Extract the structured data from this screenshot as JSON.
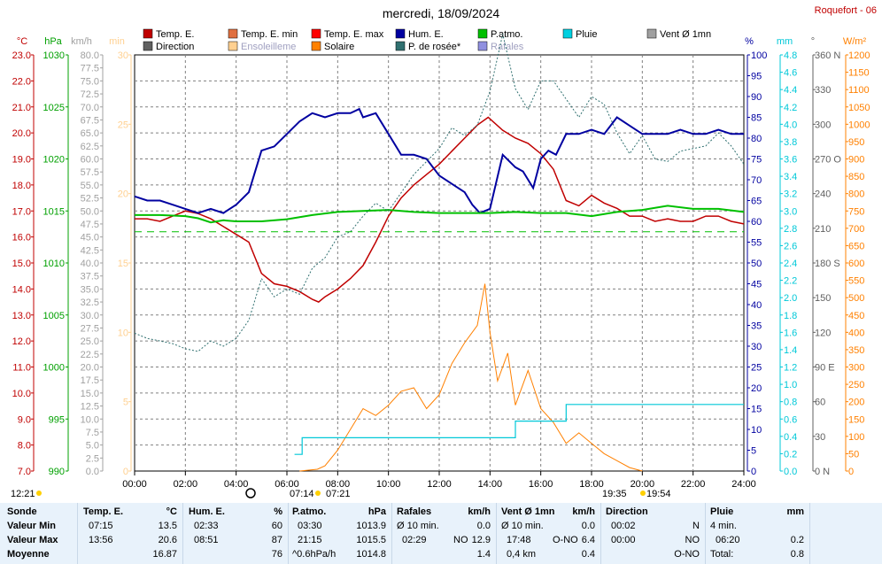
{
  "title": "mercredi, 18/09/2024",
  "station": "Roquefort - 06",
  "legend": [
    {
      "label": "Temp. E.",
      "color": "#c00000"
    },
    {
      "label": "Temp. E. min",
      "color": "#e07040"
    },
    {
      "label": "Temp. E. max",
      "color": "#ff0000"
    },
    {
      "label": "Hum. E.",
      "color": "#0000a0"
    },
    {
      "label": "P.atmo.",
      "color": "#00c000"
    },
    {
      "label": "Pluie",
      "color": "#00d0e0"
    },
    {
      "label": "Vent Ø 1mn",
      "color": "#a0a0a0"
    },
    {
      "label": "Direction",
      "color": "#606060"
    },
    {
      "label": "Ensoleilleme",
      "color": "#ffd090"
    },
    {
      "label": "Solaire",
      "color": "#ff8000"
    },
    {
      "label": "P. de rosée*",
      "color": "#307070"
    },
    {
      "label": "Rafales",
      "color": "#9090e0"
    }
  ],
  "axes": {
    "temp": {
      "unit": "°C",
      "color": "#c00000",
      "ticks": [
        "23.0",
        "22.0",
        "21.0",
        "20.0",
        "19.0",
        "18.0",
        "17.0",
        "16.0",
        "15.0",
        "14.0",
        "13.0",
        "12.0",
        "11.0",
        "10.0",
        "9.0",
        "8.0",
        "7.0"
      ]
    },
    "pressure": {
      "unit": "hPa",
      "color": "#00a000",
      "ticks": [
        "1030",
        "1025",
        "1020",
        "1015",
        "1010",
        "1005",
        "1000",
        "995",
        "990"
      ]
    },
    "wind": {
      "unit": "km/h",
      "color": "#a0a0a0",
      "ticks": [
        "80.0",
        "77.5",
        "75.0",
        "72.5",
        "70.0",
        "67.5",
        "65.0",
        "62.5",
        "60.0",
        "57.5",
        "55.0",
        "52.5",
        "50.0",
        "47.5",
        "45.0",
        "42.5",
        "40.0",
        "37.5",
        "35.0",
        "32.5",
        "30.0",
        "27.5",
        "25.0",
        "22.5",
        "20.0",
        "17.5",
        "15.0",
        "12.5",
        "10.0",
        "7.5",
        "5.0",
        "2.5",
        "0.0"
      ]
    },
    "min": {
      "unit": "min",
      "color": "#ffd090",
      "ticks": [
        "30",
        "25",
        "20",
        "15",
        "10",
        "5",
        "0"
      ]
    },
    "humidity": {
      "unit": "%",
      "color": "#0000a0",
      "ticks": [
        "100",
        "95",
        "90",
        "85",
        "80",
        "75",
        "70",
        "65",
        "60",
        "55",
        "50",
        "45",
        "40",
        "35",
        "30",
        "25",
        "20",
        "15",
        "10",
        "5",
        "0"
      ]
    },
    "rain": {
      "unit": "mm",
      "color": "#00c8d8",
      "ticks": [
        "4.8",
        "4.6",
        "4.4",
        "4.2",
        "4.0",
        "3.8",
        "3.6",
        "3.4",
        "3.2",
        "3.0",
        "2.8",
        "2.6",
        "2.4",
        "2.2",
        "2.0",
        "1.8",
        "1.6",
        "1.4",
        "1.2",
        "1.0",
        "0.8",
        "0.6",
        "0.4",
        "0.2",
        "0.0"
      ]
    },
    "direction": {
      "unit": "°",
      "color": "#606060",
      "ticks": [
        "360 N",
        "330",
        "300",
        "270 O",
        "240",
        "210",
        "180 S",
        "150",
        "120",
        "90 E",
        "60",
        "30",
        "0 N"
      ]
    },
    "solar": {
      "unit": "W/m²",
      "color": "#ff8000",
      "ticks": [
        "1200",
        "1150",
        "1100",
        "1050",
        "1000",
        "950",
        "900",
        "850",
        "800",
        "750",
        "700",
        "650",
        "600",
        "550",
        "500",
        "450",
        "400",
        "350",
        "300",
        "250",
        "200",
        "150",
        "100",
        "50",
        "0"
      ]
    }
  },
  "x_ticks": [
    "00:00",
    "02:00",
    "04:00",
    "06:00",
    "08:00",
    "10:00",
    "12:00",
    "14:00",
    "16:00",
    "18:00",
    "20:00",
    "22:00",
    "24:00"
  ],
  "astro": {
    "moonset": "12:21",
    "sunrise": "07:14",
    "sunrise2": "07:21",
    "sunset": "19:35",
    "sunset2": "19:54"
  },
  "chart_data": {
    "type": "line",
    "x_unit": "hour",
    "xlim": [
      0,
      24
    ],
    "series": [
      {
        "name": "Temp. E.",
        "unit": "°C",
        "ylim": [
          7,
          23
        ],
        "points": [
          [
            0,
            16.7
          ],
          [
            0.5,
            16.7
          ],
          [
            1,
            16.6
          ],
          [
            1.5,
            16.8
          ],
          [
            2,
            17.0
          ],
          [
            2.5,
            16.9
          ],
          [
            3,
            16.7
          ],
          [
            3.5,
            16.4
          ],
          [
            4,
            16.1
          ],
          [
            4.5,
            15.8
          ],
          [
            5,
            14.6
          ],
          [
            5.5,
            14.2
          ],
          [
            6,
            14.1
          ],
          [
            6.5,
            13.9
          ],
          [
            7,
            13.6
          ],
          [
            7.25,
            13.5
          ],
          [
            7.5,
            13.7
          ],
          [
            8,
            14.0
          ],
          [
            8.5,
            14.4
          ],
          [
            9,
            14.9
          ],
          [
            9.5,
            15.8
          ],
          [
            10,
            16.8
          ],
          [
            10.5,
            17.5
          ],
          [
            11,
            18.0
          ],
          [
            11.5,
            18.4
          ],
          [
            12,
            18.8
          ],
          [
            12.5,
            19.3
          ],
          [
            13,
            19.8
          ],
          [
            13.5,
            20.3
          ],
          [
            13.93,
            20.6
          ],
          [
            14.5,
            20.1
          ],
          [
            15,
            19.8
          ],
          [
            15.5,
            19.6
          ],
          [
            16,
            19.2
          ],
          [
            16.5,
            18.6
          ],
          [
            17,
            17.4
          ],
          [
            17.5,
            17.2
          ],
          [
            18,
            17.6
          ],
          [
            18.5,
            17.3
          ],
          [
            19,
            17.1
          ],
          [
            19.5,
            16.8
          ],
          [
            20,
            16.8
          ],
          [
            20.5,
            16.6
          ],
          [
            21,
            16.7
          ],
          [
            21.5,
            16.6
          ],
          [
            22,
            16.6
          ],
          [
            22.5,
            16.8
          ],
          [
            23,
            16.8
          ],
          [
            23.5,
            16.6
          ],
          [
            24,
            16.5
          ]
        ]
      },
      {
        "name": "Hum. E.",
        "unit": "%",
        "ylim": [
          0,
          100
        ],
        "points": [
          [
            0,
            66
          ],
          [
            0.5,
            65
          ],
          [
            1,
            65
          ],
          [
            1.5,
            64
          ],
          [
            2,
            63
          ],
          [
            2.5,
            62
          ],
          [
            3,
            63
          ],
          [
            3.5,
            62
          ],
          [
            4,
            64
          ],
          [
            4.5,
            67
          ],
          [
            5,
            77
          ],
          [
            5.5,
            78
          ],
          [
            6,
            81
          ],
          [
            6.5,
            84
          ],
          [
            7,
            86
          ],
          [
            7.5,
            85
          ],
          [
            8,
            86
          ],
          [
            8.5,
            86
          ],
          [
            8.85,
            87
          ],
          [
            9,
            85
          ],
          [
            9.5,
            86
          ],
          [
            10,
            81
          ],
          [
            10.5,
            76
          ],
          [
            11,
            76
          ],
          [
            11.5,
            75
          ],
          [
            12,
            71
          ],
          [
            12.5,
            69
          ],
          [
            13,
            67
          ],
          [
            13.3,
            64
          ],
          [
            13.6,
            62
          ],
          [
            14,
            63
          ],
          [
            14.5,
            76
          ],
          [
            15,
            73
          ],
          [
            15.3,
            72
          ],
          [
            15.7,
            68
          ],
          [
            16,
            75
          ],
          [
            16.3,
            77
          ],
          [
            16.6,
            76
          ],
          [
            17,
            81
          ],
          [
            17.5,
            81
          ],
          [
            18,
            82
          ],
          [
            18.5,
            81
          ],
          [
            19,
            85
          ],
          [
            19.5,
            83
          ],
          [
            20,
            81
          ],
          [
            20.5,
            81
          ],
          [
            21,
            81
          ],
          [
            21.5,
            82
          ],
          [
            22,
            81
          ],
          [
            22.5,
            81
          ],
          [
            23,
            82
          ],
          [
            23.5,
            81
          ],
          [
            24,
            81
          ]
        ]
      },
      {
        "name": "P.atmo.",
        "unit": "hPa",
        "ylim": [
          990,
          1030
        ],
        "points": [
          [
            0,
            1014.6
          ],
          [
            1,
            1014.6
          ],
          [
            2,
            1014.5
          ],
          [
            2.5,
            1014.3
          ],
          [
            3,
            1013.9
          ],
          [
            3.5,
            1014.1
          ],
          [
            4,
            1014.0
          ],
          [
            5,
            1014.0
          ],
          [
            6,
            1014.2
          ],
          [
            7,
            1014.6
          ],
          [
            8,
            1014.9
          ],
          [
            9,
            1015.0
          ],
          [
            10,
            1015.1
          ],
          [
            11,
            1014.9
          ],
          [
            12,
            1014.8
          ],
          [
            13,
            1014.8
          ],
          [
            14,
            1014.8
          ],
          [
            15,
            1014.9
          ],
          [
            16,
            1014.8
          ],
          [
            17,
            1014.8
          ],
          [
            18,
            1014.5
          ],
          [
            19,
            1014.9
          ],
          [
            20,
            1015.1
          ],
          [
            21,
            1015.5
          ],
          [
            22,
            1015.2
          ],
          [
            23,
            1015.2
          ],
          [
            24,
            1014.9
          ]
        ]
      },
      {
        "name": "P. de rosée*",
        "unit": "°C",
        "ylim": [
          7,
          23
        ],
        "points": [
          [
            0,
            12.3
          ],
          [
            0.5,
            12.1
          ],
          [
            1,
            12.0
          ],
          [
            1.5,
            11.9
          ],
          [
            2,
            11.7
          ],
          [
            2.5,
            11.6
          ],
          [
            3,
            12.0
          ],
          [
            3.5,
            11.8
          ],
          [
            4,
            12.1
          ],
          [
            4.5,
            12.8
          ],
          [
            5,
            14.4
          ],
          [
            5.5,
            13.7
          ],
          [
            6,
            14.0
          ],
          [
            6.5,
            13.8
          ],
          [
            7,
            14.8
          ],
          [
            7.5,
            15.2
          ],
          [
            8,
            16.0
          ],
          [
            8.5,
            16.2
          ],
          [
            9,
            16.8
          ],
          [
            9.5,
            17.3
          ],
          [
            10,
            17.0
          ],
          [
            10.5,
            17.7
          ],
          [
            11,
            18.4
          ],
          [
            11.5,
            18.9
          ],
          [
            12,
            19.4
          ],
          [
            12.5,
            20.2
          ],
          [
            13,
            19.9
          ],
          [
            13.5,
            20.3
          ],
          [
            14,
            21.6
          ],
          [
            14.5,
            23.8
          ],
          [
            15,
            21.7
          ],
          [
            15.5,
            20.9
          ],
          [
            16,
            22.0
          ],
          [
            16.5,
            22.0
          ],
          [
            17,
            21.3
          ],
          [
            17.5,
            20.6
          ],
          [
            18,
            21.4
          ],
          [
            18.5,
            21.1
          ],
          [
            19,
            20.0
          ],
          [
            19.5,
            19.2
          ],
          [
            20,
            19.9
          ],
          [
            20.5,
            19.0
          ],
          [
            21,
            18.9
          ],
          [
            21.5,
            19.3
          ],
          [
            22,
            19.4
          ],
          [
            22.5,
            19.5
          ],
          [
            23,
            20.0
          ],
          [
            23.5,
            19.5
          ],
          [
            24,
            18.8
          ]
        ]
      },
      {
        "name": "Solaire",
        "unit": "W/m²",
        "ylim": [
          0,
          1200
        ],
        "points": [
          [
            6.5,
            0
          ],
          [
            7.2,
            5
          ],
          [
            7.5,
            15
          ],
          [
            8,
            60
          ],
          [
            8.5,
            120
          ],
          [
            9,
            180
          ],
          [
            9.5,
            160
          ],
          [
            10,
            190
          ],
          [
            10.5,
            230
          ],
          [
            11,
            240
          ],
          [
            11.5,
            180
          ],
          [
            12,
            220
          ],
          [
            12.5,
            310
          ],
          [
            13,
            370
          ],
          [
            13.5,
            420
          ],
          [
            13.8,
            540
          ],
          [
            14,
            400
          ],
          [
            14.3,
            260
          ],
          [
            14.7,
            340
          ],
          [
            15,
            190
          ],
          [
            15.5,
            290
          ],
          [
            16,
            180
          ],
          [
            16.5,
            140
          ],
          [
            17,
            80
          ],
          [
            17.5,
            110
          ],
          [
            18,
            80
          ],
          [
            18.5,
            50
          ],
          [
            19,
            30
          ],
          [
            19.5,
            10
          ],
          [
            20,
            0
          ]
        ]
      },
      {
        "name": "Pluie",
        "unit": "mm",
        "ylim": [
          0,
          5
        ],
        "points": [
          [
            6.3,
            0.2
          ],
          [
            6.6,
            0.4
          ],
          [
            9,
            0.4
          ],
          [
            12,
            0.4
          ],
          [
            15,
            0.6
          ],
          [
            16,
            0.6
          ],
          [
            17,
            0.8
          ],
          [
            24,
            0.8
          ]
        ]
      }
    ]
  },
  "summary": {
    "rows": [
      "Sonde",
      "Valeur Min",
      "Valeur Max",
      "Moyenne"
    ],
    "temp": {
      "title": "Temp. E.",
      "unit": "°C",
      "min_time": "07:15",
      "min_val": "13.5",
      "max_time": "13:56",
      "max_val": "20.6",
      "avg": "16.87"
    },
    "hum": {
      "title": "Hum. E.",
      "unit": "%",
      "min_time": "02:33",
      "min_val": "60",
      "max_time": "08:51",
      "max_val": "87",
      "avg": "76"
    },
    "patmo": {
      "title": "P.atmo.",
      "unit": "hPa",
      "min_time": "03:30",
      "min_val": "1013.9",
      "max_time": "21:15",
      "max_val": "1015.5",
      "trend": "^0.6hPa/h",
      "avg": "1014.8"
    },
    "rafales": {
      "title": "Rafales",
      "unit": "km/h",
      "r1_label": "Ø 10 min.",
      "r1_val": "0.0",
      "r2_time": "02:29",
      "r2_dir": "NO",
      "r2_val": "12.9",
      "avg": "1.4"
    },
    "vent": {
      "title": "Vent Ø 1mn",
      "unit": "km/h",
      "r1_label": "Ø 10 min.",
      "r1_val": "0.0",
      "r2_time": "17:48",
      "r2_dir": "O-NO",
      "r2_val": "6.4",
      "r3_label": "0,4 km",
      "avg": "0.4"
    },
    "direction": {
      "title": "Direction",
      "r1_time": "00:02",
      "r1_dir": "N",
      "r2_time": "00:00",
      "r2_dir": "NO",
      "avg_dir": "O-NO"
    },
    "pluie": {
      "title": "Pluie",
      "unit": "mm",
      "r1_label": "4 min.",
      "r2_time": "06:20",
      "r2_val": "0.2",
      "r3_label": "Total:",
      "r3_val": "0.8"
    }
  }
}
